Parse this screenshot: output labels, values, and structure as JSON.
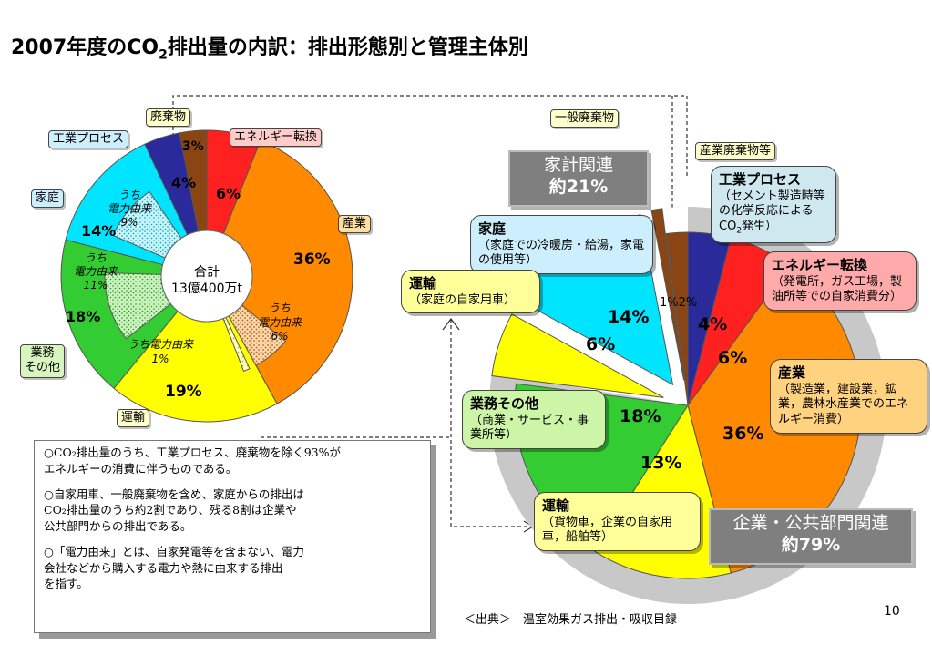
{
  "title": {
    "main": "2007年度のCO",
    "sub": "2",
    "rest": "排出量の内訳：排出形態別と管理主体別"
  },
  "chart_data": [
    {
      "type": "pie",
      "style": "donut",
      "title": "",
      "center_label": [
        "合計",
        "13億400万t"
      ],
      "slices": [
        {
          "label": "エネルギー転換",
          "value": 6,
          "display": "6%",
          "color": "#ff2020"
        },
        {
          "label": "産業",
          "value": 36,
          "display": "36%",
          "color": "#ff8a00"
        },
        {
          "label": "運輸",
          "value": 19,
          "display": "19%",
          "color": "#ffff00"
        },
        {
          "label": "業務その他",
          "value": 18,
          "display": "18%",
          "color": "#33cc33"
        },
        {
          "label": "家庭",
          "value": 14,
          "display": "14%",
          "color": "#00e5ff"
        },
        {
          "label": "工業プロセス",
          "value": 4,
          "display": "4%",
          "color": "#2a2a9a"
        },
        {
          "label": "廃棄物",
          "value": 3,
          "display": "3%",
          "color": "#8b4513"
        }
      ],
      "inner_sub_slices": [
        {
          "parent": "産業",
          "label": "うち電力由来",
          "value": 6,
          "display": "6%"
        },
        {
          "parent": "運輸",
          "label": "うち電力由来",
          "value": 1,
          "display": "1%"
        },
        {
          "parent": "業務その他",
          "label": "うち電力由来",
          "value": 11,
          "display": "11%"
        },
        {
          "parent": "家庭",
          "label": "うち電力由来",
          "value": 9,
          "display": "9%"
        }
      ]
    },
    {
      "type": "pie",
      "style": "exploded",
      "title": "",
      "groups": [
        {
          "label": "家計関連",
          "total": "約21%",
          "members": [
            "運輸",
            "家庭",
            "一般廃棄物"
          ]
        },
        {
          "label": "企業・公共部門関連",
          "total": "約79%",
          "members": [
            "運輸",
            "業務その他",
            "産業",
            "エネルギー転換",
            "工業プロセス",
            "産業廃棄物等"
          ]
        }
      ],
      "slices": [
        {
          "label": "工業プロセス",
          "value": 4,
          "display": "4%",
          "color": "#2a2a9a",
          "group": "企業・公共部門関連"
        },
        {
          "label": "エネルギー転換",
          "value": 6,
          "display": "6%",
          "color": "#ff2020",
          "group": "企業・公共部門関連"
        },
        {
          "label": "産業",
          "value": 36,
          "display": "36%",
          "color": "#ff8a00",
          "group": "企業・公共部門関連"
        },
        {
          "label": "運輸",
          "value": 13,
          "display": "13%",
          "color": "#ffff00",
          "group": "企業・公共部門関連"
        },
        {
          "label": "業務その他",
          "value": 18,
          "display": "18%",
          "color": "#33cc33",
          "group": "企業・公共部門関連"
        },
        {
          "label": "運輸",
          "value": 6,
          "display": "6%",
          "color": "#ffff00",
          "group": "家計関連"
        },
        {
          "label": "家庭",
          "value": 14,
          "display": "14%",
          "color": "#00e5ff",
          "group": "家計関連"
        },
        {
          "label": "一般廃棄物",
          "value": 1,
          "display": "1%",
          "color": "#8b4513",
          "group": "家計関連"
        },
        {
          "label": "産業廃棄物等",
          "value": 2,
          "display": "2%",
          "color": "#8b4513",
          "group": "企業・公共部門関連"
        }
      ]
    }
  ],
  "left_labels": {
    "waste": "廃棄物",
    "process": "工業プロセス",
    "energy": "エネルギー転換",
    "household": "家庭",
    "industry": "産業",
    "business": "業務\nその他",
    "transport": "運輸",
    "pct_waste": "3%",
    "pct_process": "4%",
    "pct_energy": "6%",
    "pct_industry": "36%",
    "pct_household": "14%",
    "pct_business": "18%",
    "pct_transport": "19%",
    "sub_industry": "うち\n電力由来\n6%",
    "sub_transport": "うち電力由来\n1%",
    "sub_business": "うち\n電力由来\n11%",
    "sub_household": "うち\n電力由来\n9%",
    "center_1": "合計",
    "center_2": "13億400万t"
  },
  "right_labels": {
    "general_waste": "一般廃棄物",
    "industrial_waste": "産業廃棄物等",
    "pct_process": "4%",
    "pct_energy": "6%",
    "pct_industry": "36%",
    "pct_business": "18%",
    "pct_transport_corp": "13%",
    "pct_transport_home": "6%",
    "pct_household": "14%",
    "pct_waste": "1%2%"
  },
  "callouts": {
    "process": {
      "title": "工業プロセス",
      "body": "（セメント製造時等の化学反応による",
      "body2": "CO",
      "sub": "2",
      "body3": "発生）"
    },
    "energy": {
      "title": "エネルギー転換",
      "body": "（発電所，ガス工場，製油所等での自家消費分）"
    },
    "industry": {
      "title": "産業",
      "body": "（製造業，建設業，鉱業，農林水産業でのエネルギー消費）"
    },
    "business": {
      "title": "業務その他",
      "body": "（商業・サービス・事業所等）"
    },
    "transport_corp": {
      "title": "運輸",
      "body": "（貨物車，企業の自家用車，船舶等）"
    },
    "household": {
      "title": "家庭",
      "body": "（家庭での冷暖房・給湯，家電の使用等）"
    },
    "transport_home": {
      "title": "運輸",
      "body": "（家庭の自家用車）"
    }
  },
  "groups": {
    "home": {
      "line1": "家計関連",
      "line2": "約21%"
    },
    "corp": {
      "line1": "企業・公共部門関連",
      "line2": "約79%"
    }
  },
  "note": {
    "p1": "○CO₂排出量のうち、工業プロセス、廃棄物を除く93%が\nエネルギーの消費に伴うものである。",
    "p2": "○自家用車、一般廃棄物を含め、家庭からの排出は\nCO₂排出量のうち約2割であり、残る8割は企業や\n公共部門からの排出である。",
    "p3": "○「電力由来」とは、自家発電等を含まない、電力\n会社などから購入する電力や熱に由来する排出\nを指す。"
  },
  "source": "＜出典＞　温室効果ガス排出・吸収目録",
  "page_number": "10"
}
